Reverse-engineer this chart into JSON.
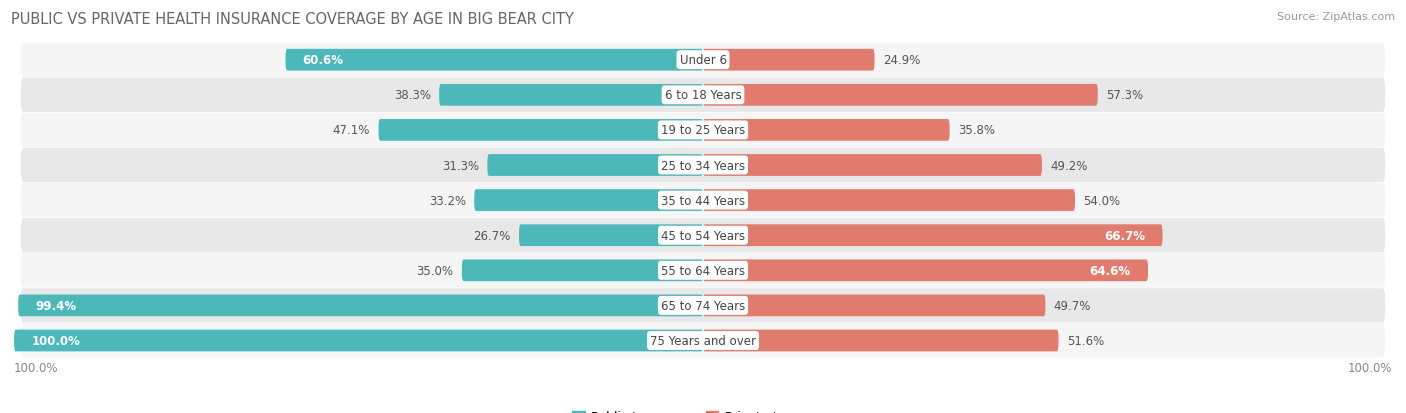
{
  "title": "PUBLIC VS PRIVATE HEALTH INSURANCE COVERAGE BY AGE IN BIG BEAR CITY",
  "source": "Source: ZipAtlas.com",
  "categories": [
    "Under 6",
    "6 to 18 Years",
    "19 to 25 Years",
    "25 to 34 Years",
    "35 to 44 Years",
    "45 to 54 Years",
    "55 to 64 Years",
    "65 to 74 Years",
    "75 Years and over"
  ],
  "public_values": [
    60.6,
    38.3,
    47.1,
    31.3,
    33.2,
    26.7,
    35.0,
    99.4,
    100.0
  ],
  "private_values": [
    24.9,
    57.3,
    35.8,
    49.2,
    54.0,
    66.7,
    64.6,
    49.7,
    51.6
  ],
  "public_color": "#4db8ba",
  "private_color": "#e07b6e",
  "public_color_light": "#85d0d1",
  "private_color_light": "#f0a89f",
  "background_color": "#ffffff",
  "row_bg_even": "#f5f5f5",
  "row_bg_odd": "#e8e8e8",
  "bar_height": 0.62,
  "max_value": 100.0,
  "title_fontsize": 10.5,
  "label_fontsize": 8.5,
  "cat_fontsize": 8.5,
  "legend_fontsize": 9,
  "source_fontsize": 8,
  "inside_label_threshold": 60.0
}
